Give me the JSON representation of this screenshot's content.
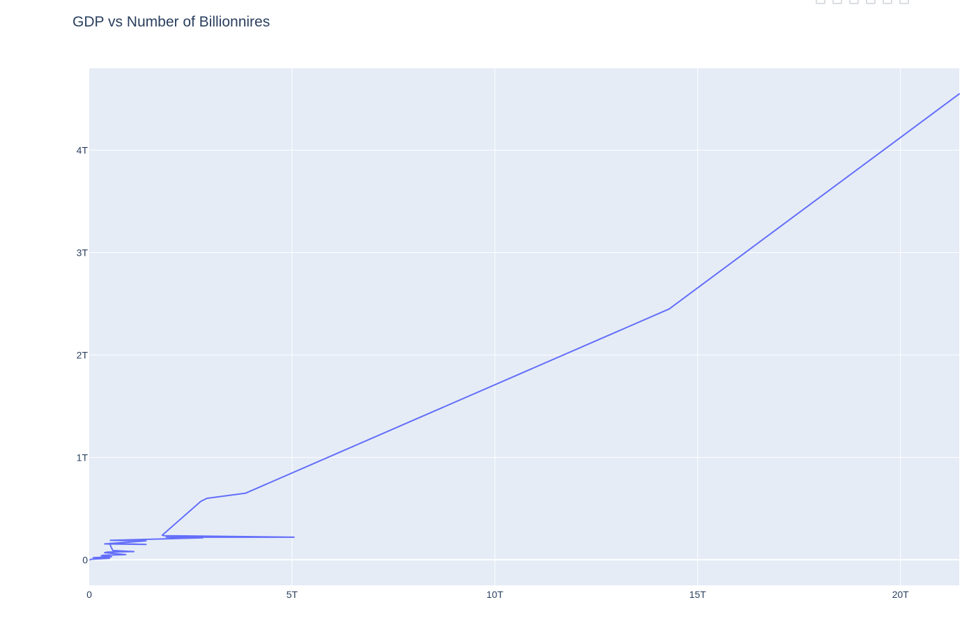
{
  "chart_data": {
    "type": "line",
    "title": "GDP vs Number of Billionnires",
    "xlabel": "",
    "ylabel": "",
    "xlim": [
      0,
      21.45
    ],
    "ylim": [
      -0.25,
      4.8
    ],
    "x_unit": "trillion",
    "y_unit": "trillion",
    "x_ticks": [
      {
        "value": 0,
        "label": "0"
      },
      {
        "value": 5,
        "label": "5T"
      },
      {
        "value": 10,
        "label": "10T"
      },
      {
        "value": 15,
        "label": "15T"
      },
      {
        "value": 20,
        "label": "20T"
      }
    ],
    "y_ticks": [
      {
        "value": 0,
        "label": "0"
      },
      {
        "value": 1,
        "label": "1T"
      },
      {
        "value": 2,
        "label": "2T"
      },
      {
        "value": 3,
        "label": "3T"
      },
      {
        "value": 4,
        "label": "4T"
      }
    ],
    "grid": true,
    "colors": {
      "line": "#636efa",
      "plot_background": "#e5ecf6",
      "grid": "#ffffff",
      "text": "#2a3f5f"
    },
    "series": [
      {
        "x": [
          0.02,
          0.05,
          0.5,
          0.1,
          0.55,
          0.3,
          0.35,
          0.9,
          0.38,
          0.45,
          1.1,
          0.58,
          0.5,
          1.4,
          0.38,
          1.4,
          0.52,
          2.8,
          1.9,
          5.05,
          1.85,
          1.8,
          2.75,
          2.9,
          3.85,
          14.3,
          21.45
        ],
        "y": [
          0.0,
          0.005,
          0.015,
          0.02,
          0.03,
          0.04,
          0.045,
          0.05,
          0.07,
          0.075,
          0.08,
          0.09,
          0.16,
          0.15,
          0.155,
          0.185,
          0.19,
          0.215,
          0.22,
          0.22,
          0.235,
          0.24,
          0.57,
          0.6,
          0.65,
          2.45,
          4.55
        ]
      }
    ]
  }
}
